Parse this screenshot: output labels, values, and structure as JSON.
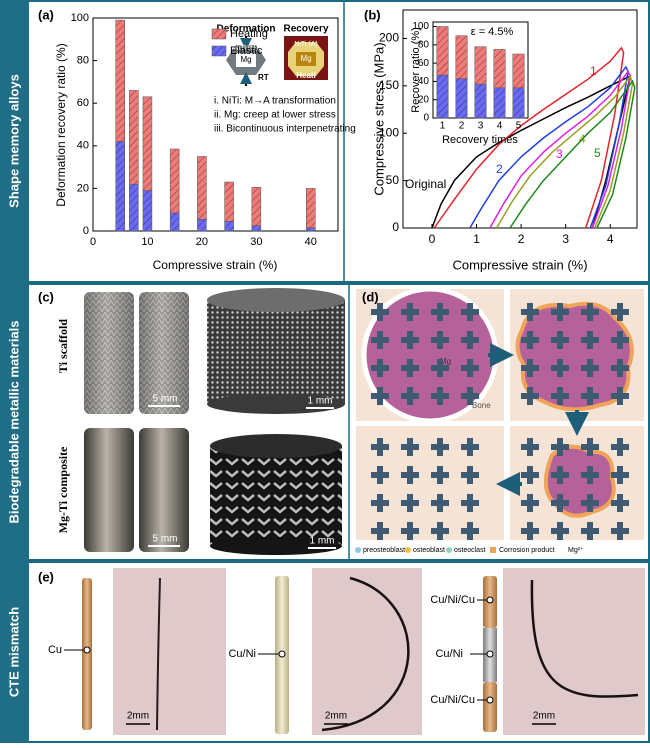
{
  "section_labels": [
    "Shape memory alloys",
    "Biodegradable metallic materials",
    "CTE mismatch"
  ],
  "chart_data": [
    {
      "type": "bar",
      "panel_label": "(a)",
      "stacked": true,
      "x_label": "Compressive strain (%)",
      "y_label": "Deformation recovery ratio (%)",
      "x": [
        5,
        7.5,
        10,
        15,
        20,
        25,
        30,
        40
      ],
      "series": [
        {
          "name": "Heating",
          "color": "#f07a78",
          "values": [
            57,
            44,
            44,
            30,
            29.5,
            18.5,
            18,
            18.5
          ]
        },
        {
          "name": "Elastic",
          "color": "#6a6af2",
          "values": [
            42,
            22,
            19,
            8.5,
            5.5,
            4.5,
            2.5,
            1.5
          ]
        }
      ],
      "xlim": [
        0,
        45
      ],
      "xticks": [
        0,
        10,
        20,
        30,
        40
      ],
      "ylim": [
        0,
        100
      ],
      "yticks": [
        0,
        20,
        40,
        60,
        80,
        100
      ],
      "annotations": {
        "deformation": "Deformation",
        "recovery": "Recovery",
        "niti_m": "NiTi (M)",
        "niti_a": "NiTi (A)",
        "mg_left": "Mg",
        "mg_right": "Mg",
        "rt": "RT",
        "heating": "Heati",
        "notes": [
          "i. NiTi: M→A transformation",
          "ii. Mg:  creep at lower stress",
          "iii. Bicontinuous interpenetrating"
        ]
      }
    },
    {
      "type": "line",
      "panel_label": "(b)",
      "x_label": "Compressive strain (%)",
      "y_label": "Compressive stress (MPa)",
      "series": [
        {
          "name": "Original",
          "color": "#000000",
          "x": [
            0,
            0.2,
            0.5,
            1,
            1.5,
            2,
            2.5,
            3,
            3.5,
            4,
            4.35,
            4.45,
            4.2,
            3.9,
            3.6
          ],
          "values": [
            0,
            25,
            50,
            75,
            90,
            103,
            115,
            127,
            138,
            150,
            158,
            160,
            110,
            50,
            0
          ]
        },
        {
          "name": "1",
          "color": "#e8222b",
          "x": [
            0.05,
            0.5,
            1,
            1.5,
            2,
            2.5,
            3,
            3.5,
            4,
            4.25,
            4.3,
            4.1,
            3.8,
            3.45
          ],
          "values": [
            0,
            30,
            62,
            88,
            108,
            125,
            141,
            157,
            176,
            190,
            185,
            120,
            50,
            0
          ]
        },
        {
          "name": "2",
          "color": "#1f3fe0",
          "x": [
            0.85,
            1.1,
            1.5,
            2,
            2.5,
            3,
            3.5,
            4,
            4.35,
            4.4,
            4.2,
            3.9,
            3.55
          ],
          "values": [
            0,
            20,
            50,
            75,
            95,
            112,
            128,
            148,
            170,
            165,
            110,
            45,
            0
          ]
        },
        {
          "name": "3",
          "color": "#e020e0",
          "x": [
            1.3,
            1.6,
            2,
            2.5,
            3,
            3.5,
            4,
            4.4,
            4.45,
            4.25,
            3.95,
            3.6
          ],
          "values": [
            0,
            25,
            55,
            80,
            100,
            118,
            140,
            165,
            160,
            105,
            45,
            0
          ]
        },
        {
          "name": "4",
          "color": "#9aa020",
          "x": [
            1.45,
            1.8,
            2.2,
            2.7,
            3.2,
            3.7,
            4.1,
            4.45,
            4.5,
            4.3,
            4,
            3.65
          ],
          "values": [
            0,
            28,
            55,
            80,
            100,
            120,
            138,
            160,
            152,
            100,
            40,
            0
          ]
        },
        {
          "name": "5",
          "color": "#1a8a1a",
          "x": [
            1.75,
            2.1,
            2.5,
            3,
            3.5,
            4,
            4.5,
            4.55,
            4.35,
            4.05,
            3.7
          ],
          "values": [
            0,
            25,
            50,
            75,
            100,
            122,
            155,
            148,
            95,
            35,
            0
          ]
        }
      ],
      "xlim": [
        -0.65,
        4.6
      ],
      "xticks": [
        0,
        1,
        2,
        3,
        4
      ],
      "ylim": [
        0,
        230
      ],
      "yticks": [
        0,
        50,
        100,
        150,
        200
      ]
    },
    {
      "type": "bar",
      "stacked": true,
      "title": "ε = 4.5%",
      "x_label": "Recovery times",
      "y_label": "Recover ratio (%)",
      "categories": [
        "1",
        "2",
        "3",
        "4",
        "5"
      ],
      "series": [
        {
          "color": "#f07a78",
          "values": [
            53,
            47,
            41,
            42,
            37
          ]
        },
        {
          "color": "#6a6af2",
          "values": [
            47,
            43,
            37,
            33,
            33
          ]
        }
      ],
      "ylim": [
        0,
        105
      ],
      "yticks": [
        0,
        20,
        40,
        60,
        80,
        100
      ]
    }
  ],
  "panel_c": {
    "label": "(c)",
    "rows": [
      {
        "label": "Ti scaffold",
        "scales": [
          "5 mm",
          "1 mm"
        ]
      },
      {
        "label": "Mg-Ti composite",
        "scales": [
          "5 mm",
          "1 mm"
        ]
      }
    ]
  },
  "panel_d": {
    "label": "(d)",
    "core_label": "Mg",
    "tissue_label": "Bone",
    "legend": [
      "preosteoblast",
      "osteoblast",
      "osteoclast",
      "Corrosion product",
      "Mg²⁺"
    ]
  },
  "panel_e": {
    "label": "(e)",
    "samples": [
      {
        "labels": [
          "Cu"
        ],
        "scale": "2mm"
      },
      {
        "labels": [
          "Cu/Ni"
        ],
        "scale": "2mm"
      },
      {
        "labels": [
          "Cu/Ni/Cu",
          "Cu/Ni",
          "Cu/Ni/Cu"
        ],
        "scale": "2mm"
      }
    ]
  }
}
